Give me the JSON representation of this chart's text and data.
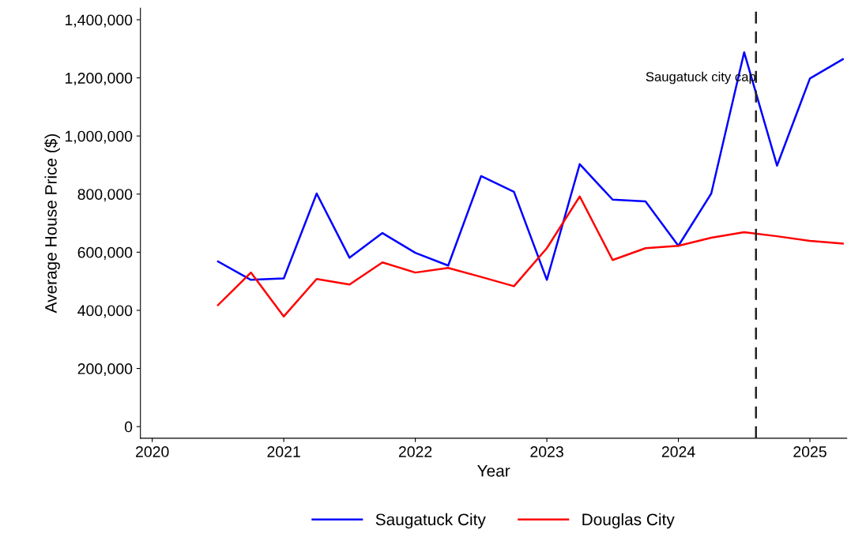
{
  "chart_data": {
    "type": "line",
    "xlabel": "Year",
    "ylabel": "Average House Price ($)",
    "x": [
      2020.5,
      2020.75,
      2021,
      2021.25,
      2021.5,
      2021.75,
      2022,
      2022.25,
      2022.5,
      2022.75,
      2023,
      2023.25,
      2023.5,
      2023.75,
      2024,
      2024.25,
      2024.5,
      2024.75,
      2025,
      2025.25
    ],
    "series": [
      {
        "name": "Saugatuck City",
        "color": "#0000ff",
        "values": [
          568000,
          505000,
          510000,
          802000,
          581000,
          666000,
          598000,
          554000,
          862000,
          808000,
          505000,
          903000,
          781000,
          775000,
          622000,
          802000,
          1288000,
          898000,
          1198000,
          1264000
        ]
      },
      {
        "name": "Douglas City",
        "color": "#ff0000",
        "values": [
          418000,
          530000,
          379000,
          508000,
          489000,
          565000,
          530000,
          546000,
          515000,
          483000,
          614000,
          792000,
          573000,
          614000,
          622000,
          650000,
          669000,
          655000,
          639000,
          630000
        ]
      }
    ],
    "xlim": [
      2019.91,
      2025.28
    ],
    "xticks": [
      2020,
      2021,
      2022,
      2023,
      2024,
      2025
    ],
    "ylim": [
      -40000,
      1440000
    ],
    "yticks": [
      {
        "value": 0,
        "label": "0"
      },
      {
        "value": 200000,
        "label": "200,000"
      },
      {
        "value": 400000,
        "label": "400,000"
      },
      {
        "value": 600000,
        "label": "600,000"
      },
      {
        "value": 800000,
        "label": "800,000"
      },
      {
        "value": 1000000,
        "label": "1,000,000"
      },
      {
        "value": 1200000,
        "label": "1,200,000"
      },
      {
        "value": 1400000,
        "label": "1,400,000"
      }
    ],
    "ref_lines": [
      {
        "axis": "x",
        "value": 2024.59,
        "label": "Saugatuck city cap",
        "color": "#222222",
        "line_style": "dashed"
      }
    ],
    "legend": "bottom",
    "grid": false,
    "marker": "none",
    "line_style": "solid"
  }
}
